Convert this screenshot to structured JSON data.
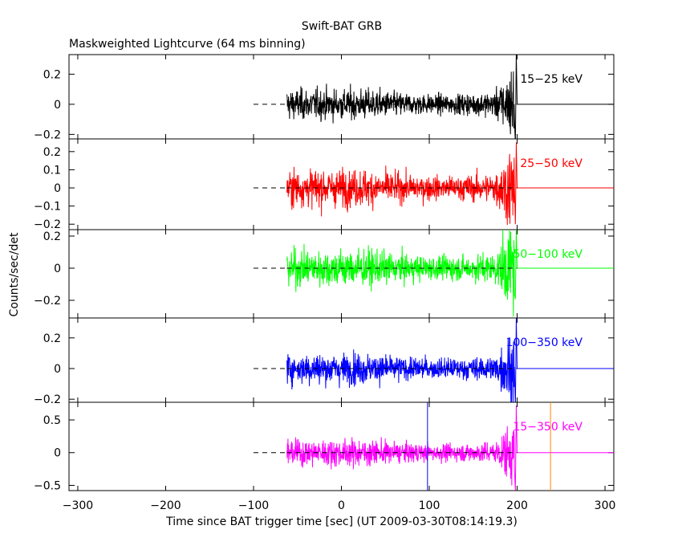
{
  "chart_data": {
    "type": "line",
    "title": "Swift-BAT GRB",
    "subtitle": "Maskweighted Lightcurve (64 ms binning)",
    "xlabel": "Time since BAT trigger time [sec] (UT 2009-03-30T08:14:19.3)",
    "ylabel": "Counts/sec/det",
    "xlim": [
      -310,
      310
    ],
    "x_ticks": [
      -300,
      -200,
      -100,
      0,
      100,
      200,
      300
    ],
    "x_tick_labels": [
      "−300",
      "−200",
      "−100",
      "0",
      "100",
      "200",
      "300"
    ],
    "binning_sec": 0.064,
    "data_start": -62,
    "data_end": 200,
    "dashed_zero_from": -100,
    "grid": false,
    "panels": [
      {
        "name": "15-25 keV",
        "label": "15−25 keV",
        "color": "#000000",
        "ylim": [
          -0.23,
          0.33
        ],
        "y_ticks": [
          -0.2,
          0,
          0.2
        ],
        "y_tick_labels": [
          "−0.2",
          "0",
          "0.2"
        ],
        "noise_sigma": 0.07,
        "spike": 0.34,
        "vlines": []
      },
      {
        "name": "25-50 keV",
        "label": "25−50 keV",
        "color": "#ff0000",
        "ylim": [
          -0.23,
          0.27
        ],
        "y_ticks": [
          -0.2,
          -0.1,
          0,
          0.1,
          0.2
        ],
        "y_tick_labels": [
          "−0.2",
          "−0.1",
          "0",
          "0.1",
          "0.2"
        ],
        "noise_sigma": 0.07,
        "spike": 0.25,
        "vlines": []
      },
      {
        "name": "50-100 keV",
        "label": "50−100 keV",
        "color": "#00ff00",
        "ylim": [
          -0.31,
          0.24
        ],
        "y_ticks": [
          -0.2,
          0,
          0.2
        ],
        "y_tick_labels": [
          "−0.2",
          "0",
          "0.2"
        ],
        "noise_sigma": 0.08,
        "spike": 0.24,
        "vlines": []
      },
      {
        "name": "100-350 keV",
        "label": "100−350 keV",
        "color": "#0000ff",
        "ylim": [
          -0.22,
          0.33
        ],
        "y_ticks": [
          -0.2,
          0,
          0.2
        ],
        "y_tick_labels": [
          "−0.2",
          "0",
          "0.2"
        ],
        "noise_sigma": 0.07,
        "spike": 0.33,
        "vlines": []
      },
      {
        "name": "15-350 keV",
        "label": "15−350 keV",
        "color": "#ff00ff",
        "ylim": [
          -0.58,
          0.77
        ],
        "y_ticks": [
          -0.5,
          0,
          0.5
        ],
        "y_tick_labels": [
          "−0.5",
          "0",
          "0.5"
        ],
        "noise_sigma": 0.14,
        "spike": 0.72,
        "vlines": [
          {
            "x": 98,
            "color": "#0000ff"
          },
          {
            "x": 238,
            "color": "#ff8800"
          }
        ]
      }
    ]
  }
}
